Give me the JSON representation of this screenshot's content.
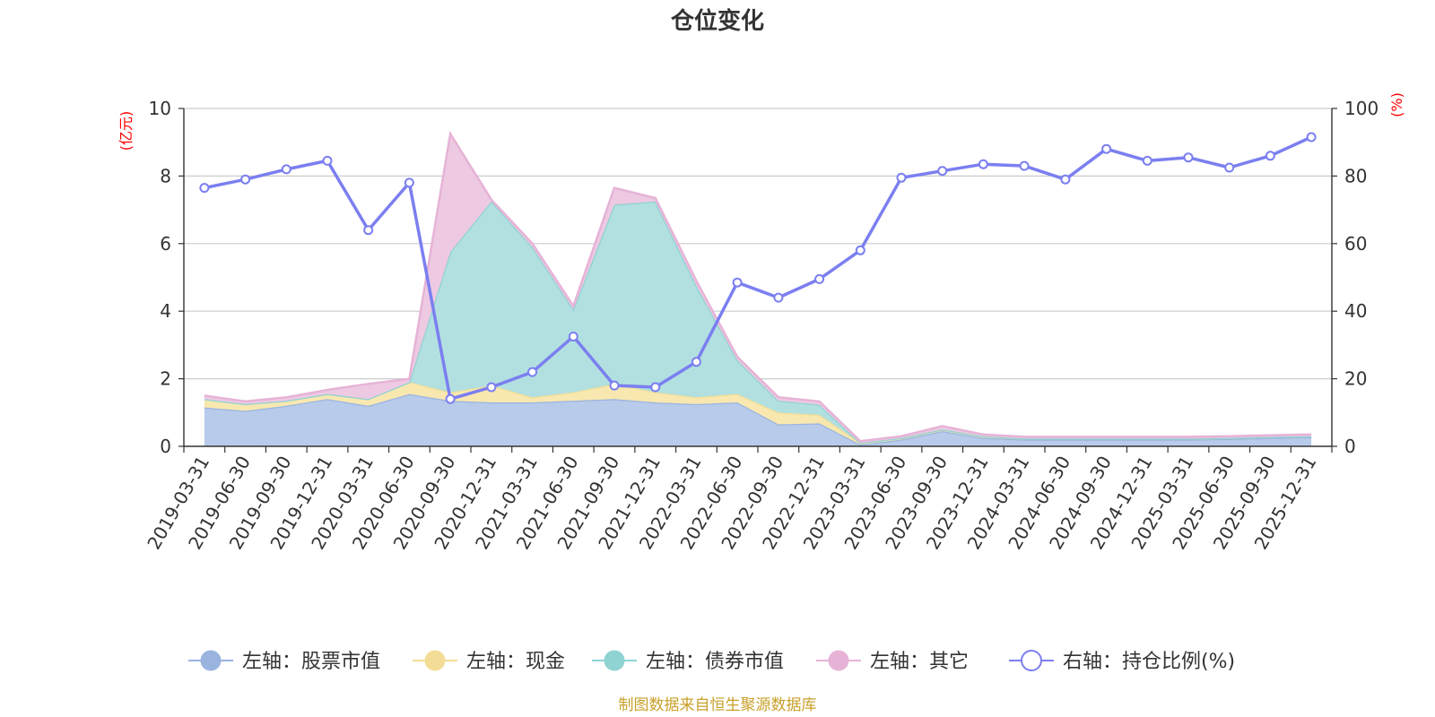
{
  "chart_data": {
    "type": "area",
    "title": "仓位变化",
    "source": "制图数据来自恒生聚源数据库",
    "left_axis": {
      "unit": "(亿元)",
      "min": 0,
      "max": 10,
      "ticks": [
        "0",
        "2",
        "4",
        "6",
        "8",
        "10"
      ]
    },
    "right_axis": {
      "unit": "(%)",
      "min": 0,
      "max": 100,
      "ticks": [
        "0",
        "20",
        "40",
        "60",
        "80",
        "100"
      ]
    },
    "categories": [
      "2019-03-31",
      "2019-06-30",
      "2019-09-30",
      "2019-12-31",
      "2020-03-31",
      "2020-06-30",
      "2020-09-30",
      "2020-12-31",
      "2021-03-31",
      "2021-06-30",
      "2021-09-30",
      "2021-12-31",
      "2022-03-31",
      "2022-06-30",
      "2022-09-30",
      "2022-12-31",
      "2023-03-31",
      "2023-06-30",
      "2023-09-30",
      "2023-12-31",
      "2024-03-31",
      "2024-06-30",
      "2024-09-30",
      "2024-12-31",
      "2025-03-31",
      "2025-06-30",
      "2025-09-30",
      "2025-12-31"
    ],
    "series": [
      {
        "name": "左轴：股票市值",
        "axis": "left",
        "stack": true,
        "fill": "#b8cbea",
        "stroke": "#9ab4e0",
        "values": [
          1.15,
          1.05,
          1.2,
          1.4,
          1.2,
          1.55,
          1.35,
          1.3,
          1.3,
          1.35,
          1.4,
          1.3,
          1.25,
          1.3,
          0.65,
          0.68,
          0.05,
          0.2,
          0.45,
          0.25,
          0.2,
          0.2,
          0.2,
          0.2,
          0.2,
          0.22,
          0.25,
          0.27
        ]
      },
      {
        "name": "左轴：现金",
        "axis": "left",
        "stack": true,
        "fill": "#f8e8b0",
        "stroke": "#f3dd96",
        "values": [
          0.25,
          0.2,
          0.15,
          0.15,
          0.2,
          0.35,
          0.25,
          0.5,
          0.15,
          0.25,
          0.45,
          0.3,
          0.2,
          0.25,
          0.35,
          0.25,
          0.05,
          0.05,
          0.05,
          0.05,
          0.03,
          0.03,
          0.03,
          0.03,
          0.03,
          0.03,
          0.03,
          0.03
        ]
      },
      {
        "name": "左轴：债券市值",
        "axis": "left",
        "stack": true,
        "fill": "#b2e0e0",
        "stroke": "#8fd3d3",
        "values": [
          0,
          0,
          0,
          0,
          0,
          0,
          4.15,
          5.45,
          4.45,
          2.45,
          5.3,
          5.65,
          3.3,
          1.0,
          0.35,
          0.3,
          0,
          0,
          0,
          0,
          0,
          0,
          0,
          0,
          0,
          0,
          0,
          0
        ]
      },
      {
        "name": "左轴：其它",
        "axis": "left",
        "stack": true,
        "fill": "#edc9e2",
        "stroke": "#e6b3d7",
        "values": [
          0.1,
          0.08,
          0.1,
          0.12,
          0.45,
          0.1,
          3.5,
          0.05,
          0.1,
          0.1,
          0.5,
          0.1,
          0.15,
          0.1,
          0.1,
          0.1,
          0.05,
          0.05,
          0.1,
          0.05,
          0.05,
          0.05,
          0.05,
          0.05,
          0.05,
          0.05,
          0.05,
          0.05
        ]
      },
      {
        "name": "右轴：持仓比例(%)",
        "axis": "right",
        "stack": false,
        "stroke": "#7b7ff0",
        "values": [
          76.5,
          79,
          82,
          84.5,
          64,
          78,
          14,
          17.5,
          22,
          32.5,
          18,
          17.5,
          25,
          48.5,
          44,
          49.5,
          58,
          79.5,
          81.5,
          83.5,
          83,
          79,
          88,
          84.5,
          85.5,
          82.5,
          86,
          91.5
        ]
      }
    ]
  }
}
